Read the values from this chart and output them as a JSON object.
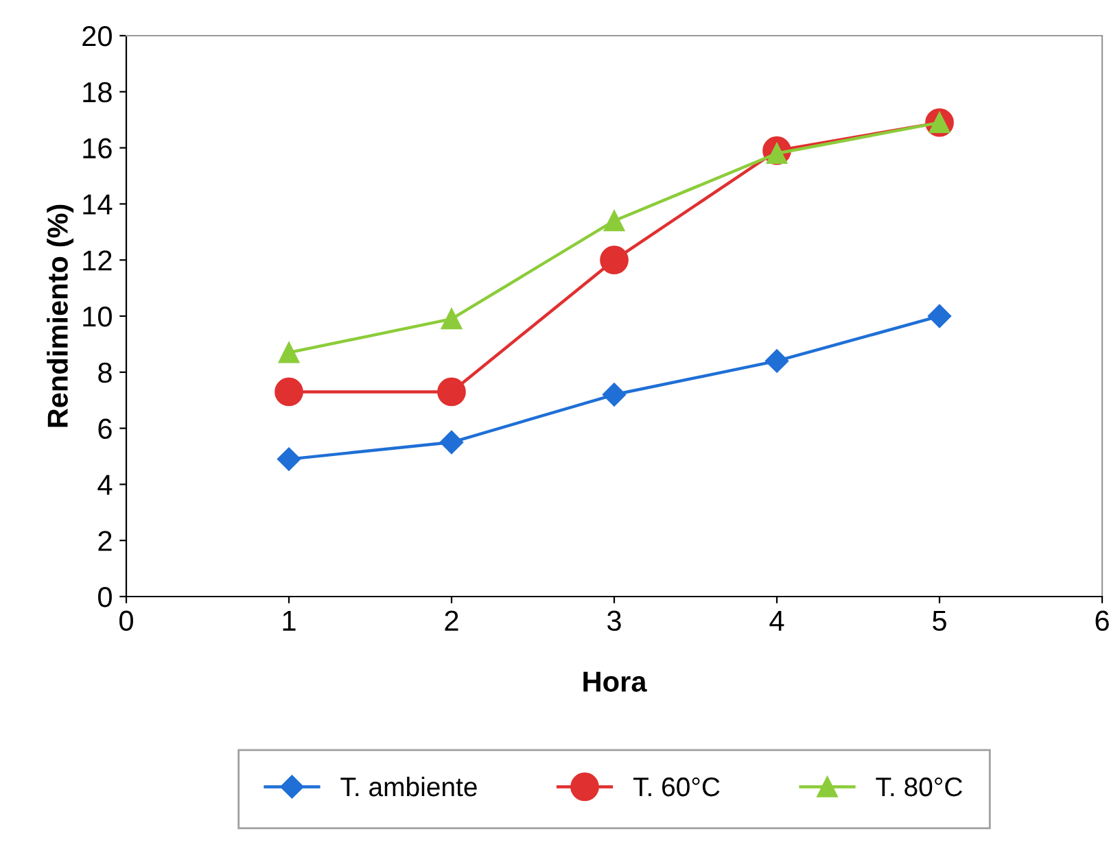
{
  "chart_data": {
    "type": "line",
    "xlabel": "Hora",
    "ylabel": "Rendimiento (%)",
    "x": [
      1,
      2,
      3,
      4,
      5
    ],
    "series": [
      {
        "name": "T. ambiente",
        "color": "#1f6fd6",
        "marker": "diamond",
        "values": [
          4.9,
          5.5,
          7.2,
          8.4,
          10.0
        ]
      },
      {
        "name": "T. 60°C",
        "color": "#e03030",
        "marker": "circle",
        "values": [
          7.3,
          7.3,
          12.0,
          15.9,
          16.9
        ]
      },
      {
        "name": "T. 80°C",
        "color": "#8ccc3a",
        "marker": "triangle",
        "values": [
          8.7,
          9.9,
          13.4,
          15.8,
          16.9
        ]
      }
    ],
    "xlim": [
      0,
      6
    ],
    "xticks": [
      0,
      1,
      2,
      3,
      4,
      5,
      6
    ],
    "ylim": [
      0,
      20
    ],
    "yticks": [
      0,
      2,
      4,
      6,
      8,
      10,
      12,
      14,
      16,
      18,
      20
    ],
    "grid": false,
    "legend": "bottom",
    "line_style": "solid"
  }
}
